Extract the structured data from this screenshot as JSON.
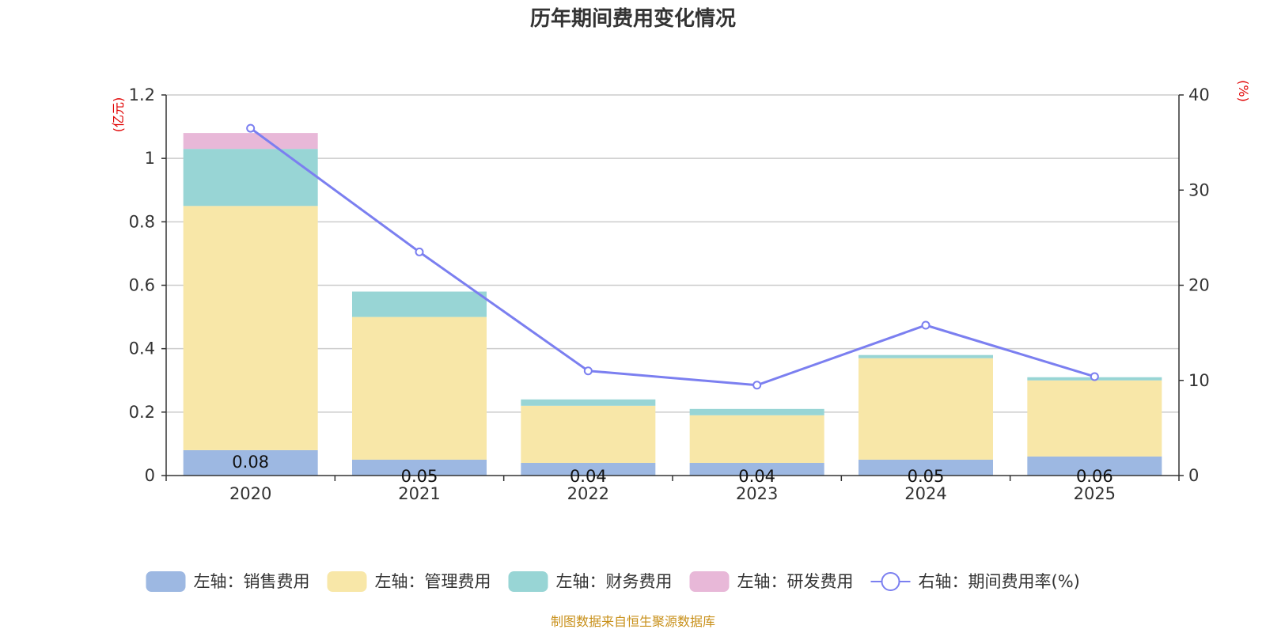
{
  "chart_data": {
    "type": "bar",
    "stacked": true,
    "title": "历年期间费用变化情况",
    "categories": [
      "2020",
      "2021",
      "2022",
      "2023",
      "2024",
      "2025"
    ],
    "left_axis": {
      "unit": "(亿元)",
      "ylim": [
        0,
        1.2
      ],
      "ticks": [
        "0",
        "0.2",
        "0.4",
        "0.6",
        "0.8",
        "1",
        "1.2"
      ]
    },
    "right_axis": {
      "unit": "(%)",
      "ylim": [
        0,
        40
      ],
      "ticks": [
        "0",
        "10",
        "20",
        "30",
        "40"
      ]
    },
    "series": [
      {
        "name": "左轴：销售费用",
        "type": "bar",
        "axis": "left",
        "color": "#9db8e2",
        "values": [
          0.08,
          0.05,
          0.04,
          0.04,
          0.05,
          0.06
        ],
        "labels": [
          "0.08",
          "0.05",
          "0.04",
          "0.04",
          "0.05",
          "0.06"
        ]
      },
      {
        "name": "左轴：管理费用",
        "type": "bar",
        "axis": "left",
        "color": "#f8e7a8",
        "values": [
          0.77,
          0.45,
          0.18,
          0.15,
          0.32,
          0.24
        ]
      },
      {
        "name": "左轴：财务费用",
        "type": "bar",
        "axis": "left",
        "color": "#98d5d5",
        "values": [
          0.18,
          0.08,
          0.02,
          0.02,
          0.01,
          0.01
        ]
      },
      {
        "name": "左轴：研发费用",
        "type": "bar",
        "axis": "left",
        "color": "#e8b8d8",
        "values": [
          0.05,
          0,
          0,
          0,
          0,
          0
        ]
      },
      {
        "name": "右轴：期间费用率(%)",
        "type": "line",
        "axis": "right",
        "color": "#7b7ff0",
        "values": [
          36.5,
          23.5,
          11.0,
          9.5,
          15.8,
          10.4
        ]
      }
    ],
    "grid": true,
    "legend_position": "bottom"
  },
  "source": "制图数据来自恒生聚源数据库"
}
